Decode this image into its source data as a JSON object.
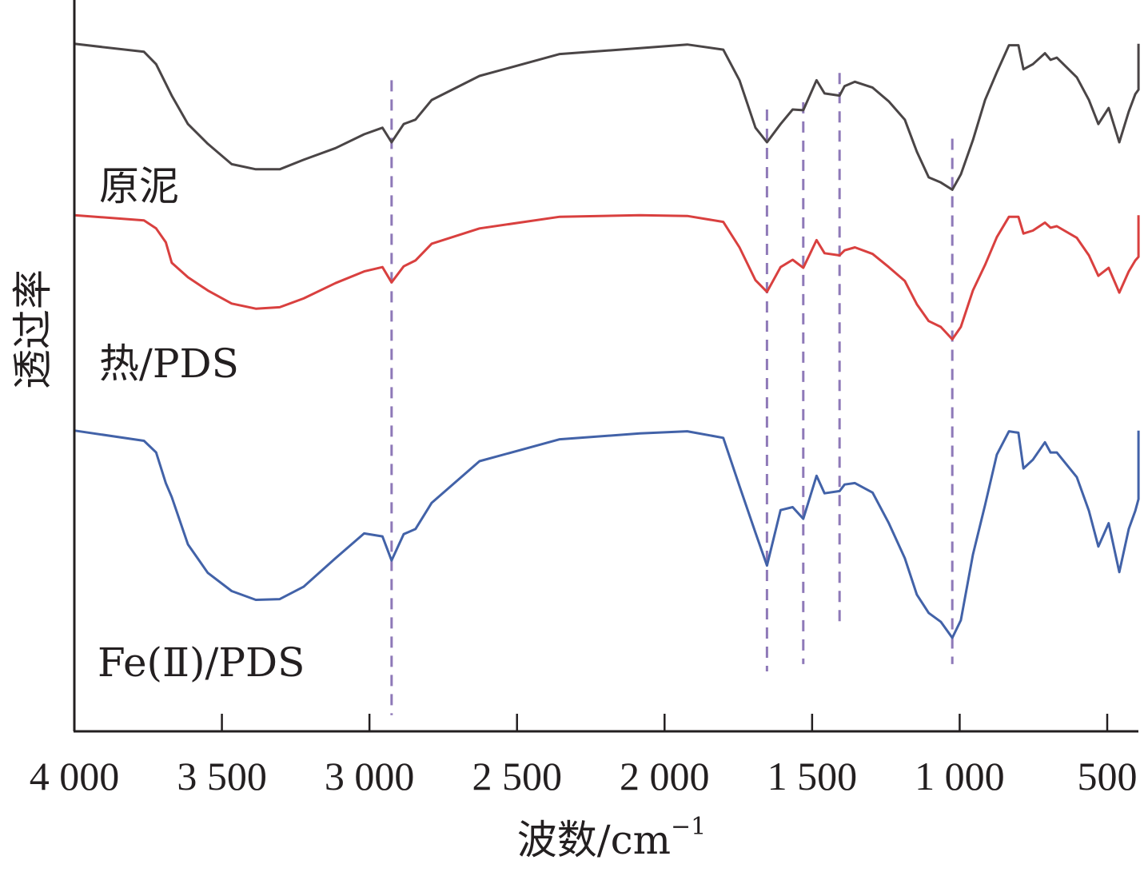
{
  "chart_data": {
    "type": "line",
    "title": "",
    "xlabel": "波数/cm",
    "xlabel_superscript": "−1",
    "ylabel": "透过率",
    "xlim": [
      4000,
      394
    ],
    "x_reversed": true,
    "ylim": [
      0,
      100
    ],
    "y_ticks_shown": false,
    "grid": false,
    "legend": "inline-labels-left",
    "x_ticks": [
      4000,
      3500,
      3000,
      2500,
      2000,
      1500,
      1000,
      500
    ],
    "x_tick_labels": [
      "4 000",
      "3 500",
      "3 000",
      "2 500",
      "2 000",
      "1 500",
      "1 000",
      "500"
    ],
    "reference_lines": [
      {
        "x": 2925,
        "style": "dashed",
        "color": "#8e79b8",
        "range": [
          2,
          89
        ]
      },
      {
        "x": 1653,
        "style": "dashed",
        "color": "#8e79b8",
        "range": [
          8,
          85
        ]
      },
      {
        "x": 1530,
        "style": "dashed",
        "color": "#8e79b8",
        "range": [
          9,
          86
        ]
      },
      {
        "x": 1407,
        "style": "dashed",
        "color": "#8e79b8",
        "range": [
          14,
          90
        ]
      },
      {
        "x": 1025,
        "style": "dashed",
        "color": "#8e79b8",
        "range": [
          9,
          81
        ]
      }
    ],
    "series": [
      {
        "name": "原泥",
        "color": "#4a4546",
        "points": [
          [
            4000,
            94.0
          ],
          [
            3764,
            92.9
          ],
          [
            3723,
            91.2
          ],
          [
            3670,
            86.9
          ],
          [
            3615,
            83.0
          ],
          [
            3548,
            80.3
          ],
          [
            3467,
            77.5
          ],
          [
            3385,
            76.8
          ],
          [
            3304,
            76.8
          ],
          [
            3223,
            78.1
          ],
          [
            3115,
            79.7
          ],
          [
            3018,
            81.6
          ],
          [
            2956,
            82.5
          ],
          [
            2925,
            80.5
          ],
          [
            2884,
            83.0
          ],
          [
            2844,
            83.6
          ],
          [
            2789,
            86.3
          ],
          [
            2627,
            89.6
          ],
          [
            2355,
            92.6
          ],
          [
            2084,
            93.4
          ],
          [
            1923,
            93.9
          ],
          [
            1801,
            93.2
          ],
          [
            1746,
            89.0
          ],
          [
            1692,
            82.5
          ],
          [
            1653,
            80.5
          ],
          [
            1607,
            83.0
          ],
          [
            1566,
            85.0
          ],
          [
            1530,
            84.9
          ],
          [
            1485,
            89.0
          ],
          [
            1458,
            87.2
          ],
          [
            1407,
            86.9
          ],
          [
            1390,
            88.2
          ],
          [
            1355,
            88.8
          ],
          [
            1295,
            88.0
          ],
          [
            1240,
            86.1
          ],
          [
            1186,
            83.6
          ],
          [
            1145,
            79.2
          ],
          [
            1105,
            75.7
          ],
          [
            1064,
            75.0
          ],
          [
            1025,
            74.0
          ],
          [
            996,
            76.1
          ],
          [
            955,
            80.8
          ],
          [
            914,
            86.3
          ],
          [
            874,
            90.1
          ],
          [
            833,
            93.8
          ],
          [
            801,
            93.8
          ],
          [
            784,
            90.5
          ],
          [
            752,
            91.2
          ],
          [
            711,
            92.7
          ],
          [
            692,
            91.8
          ],
          [
            671,
            92.1
          ],
          [
            603,
            89.4
          ],
          [
            562,
            86.3
          ],
          [
            530,
            83.0
          ],
          [
            495,
            85.2
          ],
          [
            459,
            80.5
          ],
          [
            427,
            84.7
          ],
          [
            405,
            87.1
          ],
          [
            394,
            87.7
          ],
          [
            394,
            94.0
          ]
        ]
      },
      {
        "name": "热/PDS",
        "color": "#d9403f",
        "points": [
          [
            4000,
            70.5
          ],
          [
            3764,
            69.8
          ],
          [
            3723,
            68.7
          ],
          [
            3690,
            66.8
          ],
          [
            3670,
            64.0
          ],
          [
            3615,
            62.0
          ],
          [
            3548,
            60.2
          ],
          [
            3467,
            58.4
          ],
          [
            3385,
            57.7
          ],
          [
            3304,
            57.9
          ],
          [
            3223,
            59.1
          ],
          [
            3115,
            61.2
          ],
          [
            3018,
            62.8
          ],
          [
            2956,
            63.4
          ],
          [
            2925,
            61.3
          ],
          [
            2884,
            63.5
          ],
          [
            2844,
            64.3
          ],
          [
            2789,
            66.6
          ],
          [
            2627,
            68.7
          ],
          [
            2355,
            70.3
          ],
          [
            2084,
            70.5
          ],
          [
            1923,
            70.4
          ],
          [
            1801,
            69.6
          ],
          [
            1746,
            66.1
          ],
          [
            1692,
            61.6
          ],
          [
            1653,
            60.0
          ],
          [
            1607,
            63.4
          ],
          [
            1566,
            64.4
          ],
          [
            1530,
            63.3
          ],
          [
            1485,
            67.1
          ],
          [
            1458,
            65.3
          ],
          [
            1407,
            65.0
          ],
          [
            1390,
            65.7
          ],
          [
            1355,
            66.1
          ],
          [
            1295,
            65.2
          ],
          [
            1240,
            63.4
          ],
          [
            1186,
            61.5
          ],
          [
            1145,
            58.3
          ],
          [
            1105,
            56.0
          ],
          [
            1064,
            55.2
          ],
          [
            1025,
            53.5
          ],
          [
            996,
            55.2
          ],
          [
            955,
            60.2
          ],
          [
            914,
            63.7
          ],
          [
            874,
            67.5
          ],
          [
            833,
            70.3
          ],
          [
            801,
            70.3
          ],
          [
            784,
            68.0
          ],
          [
            752,
            68.4
          ],
          [
            711,
            69.5
          ],
          [
            692,
            68.8
          ],
          [
            671,
            69.0
          ],
          [
            603,
            67.4
          ],
          [
            562,
            65.0
          ],
          [
            530,
            62.2
          ],
          [
            495,
            63.3
          ],
          [
            459,
            59.9
          ],
          [
            427,
            62.8
          ],
          [
            405,
            64.3
          ],
          [
            394,
            64.8
          ],
          [
            394,
            70.5
          ]
        ]
      },
      {
        "name": "Fe(Ⅱ)/PDS",
        "color": "#4262a8",
        "points": [
          [
            4000,
            41.0
          ],
          [
            3764,
            39.6
          ],
          [
            3723,
            38.0
          ],
          [
            3690,
            33.8
          ],
          [
            3670,
            31.9
          ],
          [
            3615,
            25.4
          ],
          [
            3548,
            21.5
          ],
          [
            3467,
            19.0
          ],
          [
            3385,
            17.8
          ],
          [
            3304,
            17.9
          ],
          [
            3223,
            19.6
          ],
          [
            3115,
            23.5
          ],
          [
            3018,
            26.9
          ],
          [
            2956,
            26.5
          ],
          [
            2925,
            23.2
          ],
          [
            2884,
            26.8
          ],
          [
            2844,
            27.5
          ],
          [
            2789,
            31.1
          ],
          [
            2627,
            36.8
          ],
          [
            2355,
            39.8
          ],
          [
            2084,
            40.6
          ],
          [
            1923,
            40.9
          ],
          [
            1801,
            40.0
          ],
          [
            1746,
            33.4
          ],
          [
            1692,
            27.0
          ],
          [
            1653,
            22.5
          ],
          [
            1607,
            30.1
          ],
          [
            1566,
            30.5
          ],
          [
            1530,
            28.9
          ],
          [
            1485,
            34.8
          ],
          [
            1458,
            32.4
          ],
          [
            1407,
            32.7
          ],
          [
            1390,
            33.6
          ],
          [
            1355,
            33.8
          ],
          [
            1295,
            32.5
          ],
          [
            1240,
            28.3
          ],
          [
            1186,
            23.5
          ],
          [
            1145,
            18.5
          ],
          [
            1105,
            16.0
          ],
          [
            1064,
            14.8
          ],
          [
            1025,
            12.6
          ],
          [
            996,
            15.0
          ],
          [
            955,
            24.0
          ],
          [
            914,
            30.8
          ],
          [
            874,
            37.7
          ],
          [
            833,
            40.9
          ],
          [
            801,
            40.7
          ],
          [
            784,
            35.8
          ],
          [
            752,
            37.0
          ],
          [
            711,
            39.4
          ],
          [
            692,
            38.0
          ],
          [
            671,
            38.0
          ],
          [
            603,
            34.6
          ],
          [
            562,
            30.0
          ],
          [
            530,
            25.1
          ],
          [
            495,
            28.3
          ],
          [
            459,
            21.6
          ],
          [
            427,
            27.5
          ],
          [
            405,
            30.0
          ],
          [
            394,
            31.6
          ],
          [
            394,
            41.0
          ]
        ]
      }
    ],
    "annotations": [
      {
        "text": "原泥",
        "series": 0
      },
      {
        "text": "热/PDS",
        "series": 1
      },
      {
        "text": "Fe(Ⅱ)/PDS",
        "series": 2
      }
    ]
  }
}
